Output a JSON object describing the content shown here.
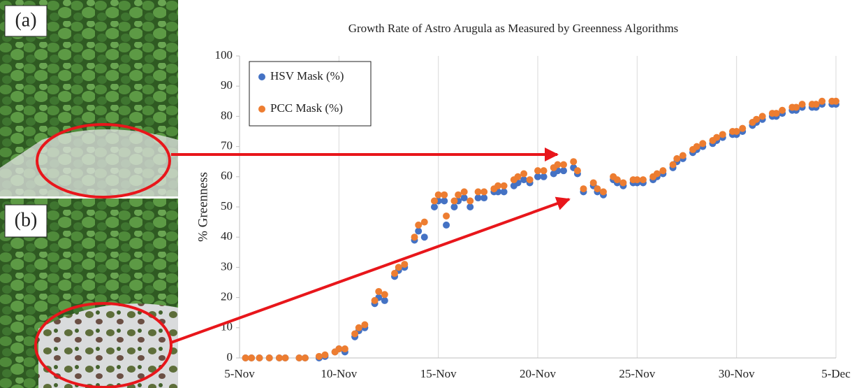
{
  "photo_labels": [
    "(a)",
    "(b)"
  ],
  "chart_data": {
    "type": "scatter",
    "title": "Growth Rate of Astro Arugula as Measured by Greenness Algorithms",
    "y_label": "% Greenness",
    "x": [
      5.3,
      5.6,
      6.0,
      6.5,
      7.0,
      7.3,
      8.0,
      8.3,
      9.0,
      9.3,
      9.8,
      10.0,
      10.3,
      10.8,
      11.0,
      11.3,
      11.8,
      12.0,
      12.3,
      12.8,
      13.0,
      13.3,
      13.8,
      14.0,
      14.3,
      14.8,
      15.0,
      15.3,
      15.4,
      15.8,
      16.0,
      16.3,
      16.6,
      17.0,
      17.3,
      17.8,
      18.0,
      18.3,
      18.8,
      19.0,
      19.3,
      19.6,
      20.0,
      20.3,
      20.8,
      21.0,
      21.3,
      21.8,
      22.0,
      22.3,
      22.8,
      23.0,
      23.3,
      23.8,
      24.0,
      24.3,
      24.8,
      25.0,
      25.3,
      25.8,
      26.0,
      26.3,
      26.8,
      27.0,
      27.3,
      27.8,
      28.0,
      28.3,
      28.8,
      29.0,
      29.3,
      29.8,
      30.0,
      30.3,
      30.8,
      31.0,
      31.3,
      31.8,
      32.0,
      32.3,
      32.8,
      33.0,
      33.3,
      33.8,
      34.0,
      34.3,
      34.8,
      35.0
    ],
    "series": [
      {
        "name": "HSV Mask (%)",
        "color": "#4472c4",
        "values": [
          0,
          0,
          0,
          0,
          0,
          0,
          0,
          0,
          0,
          0.5,
          2,
          3,
          2,
          7,
          9,
          10,
          18,
          20,
          19,
          27,
          29,
          30,
          39,
          42,
          40,
          50,
          52,
          52,
          44,
          50,
          52,
          53,
          50,
          53,
          53,
          55,
          55,
          55,
          57,
          58,
          59,
          58,
          60,
          60,
          61,
          62,
          62,
          63,
          61,
          55,
          57,
          55,
          54,
          59,
          58,
          57,
          58,
          58,
          58,
          59,
          60,
          61,
          63,
          65,
          66,
          68,
          69,
          70,
          71,
          72,
          73,
          74,
          74,
          75,
          77,
          78,
          79,
          80,
          80,
          81,
          82,
          82,
          83,
          83,
          83,
          84,
          84,
          84
        ]
      },
      {
        "name": "PCC Mask (%)",
        "color": "#ed7d31",
        "values": [
          0,
          0,
          0,
          0,
          0,
          0,
          0,
          0,
          0.5,
          1,
          2,
          3,
          3,
          8,
          10,
          11,
          19,
          22,
          21,
          28,
          30,
          31,
          40,
          44,
          45,
          52,
          54,
          54,
          47,
          52,
          54,
          55,
          52,
          55,
          55,
          56,
          57,
          57,
          59,
          60,
          61,
          59,
          62,
          62,
          63,
          64,
          64,
          65,
          62,
          56,
          58,
          56,
          55,
          60,
          59,
          58,
          59,
          59,
          59,
          60,
          61,
          62,
          64,
          66,
          67,
          69,
          70,
          71,
          72,
          73,
          74,
          75,
          75,
          76,
          78,
          79,
          80,
          81,
          81,
          82,
          83,
          83,
          84,
          84,
          84,
          85,
          85,
          85
        ]
      }
    ],
    "xlim": [
      5,
      35
    ],
    "xticks": [
      {
        "value": 5,
        "label": "5-Nov"
      },
      {
        "value": 10,
        "label": "10-Nov"
      },
      {
        "value": 15,
        "label": "15-Nov"
      },
      {
        "value": 20,
        "label": "20-Nov"
      },
      {
        "value": 25,
        "label": "25-Nov"
      },
      {
        "value": 30,
        "label": "30-Nov"
      },
      {
        "value": 35,
        "label": "5-Dec"
      }
    ],
    "ylim": [
      0,
      100
    ],
    "yticks": [
      0,
      10,
      20,
      30,
      40,
      50,
      60,
      70,
      80,
      90,
      100
    ],
    "grid": "x",
    "legend": "top-left"
  }
}
